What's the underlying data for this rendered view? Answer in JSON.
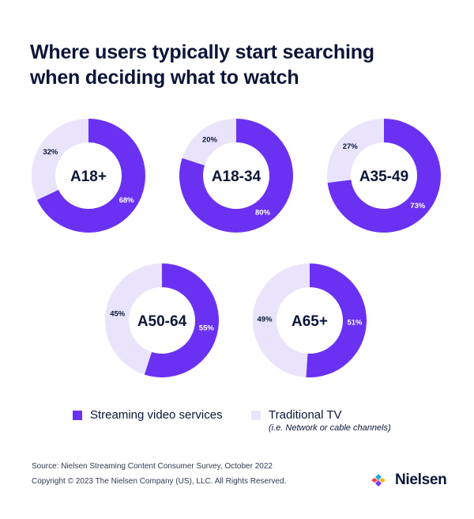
{
  "title_lines": [
    "Where users typically start searching",
    "when deciding what to watch"
  ],
  "colors": {
    "streaming": "#6b31f2",
    "traditional": "#e9e4fb",
    "text": "#0c1538",
    "hole": "#ffffff"
  },
  "chart_data": {
    "type": "pie",
    "variant": "donut",
    "title": "Where users typically start searching when deciding what to watch",
    "series": [
      {
        "name": "Streaming video services"
      },
      {
        "name": "Traditional TV"
      }
    ],
    "groups": [
      {
        "label": "A18+",
        "streaming": 68,
        "traditional": 32,
        "streaming_label": "68%",
        "traditional_label": "32%"
      },
      {
        "label": "A18-34",
        "streaming": 80,
        "traditional": 20,
        "streaming_label": "80%",
        "traditional_label": "20%"
      },
      {
        "label": "A35-49",
        "streaming": 73,
        "traditional": 27,
        "streaming_label": "73%",
        "traditional_label": "27%"
      },
      {
        "label": "A50-64",
        "streaming": 55,
        "traditional": 45,
        "streaming_label": "55%",
        "traditional_label": "45%"
      },
      {
        "label": "A65+",
        "streaming": 51,
        "traditional": 49,
        "streaming_label": "51%",
        "traditional_label": "49%"
      }
    ],
    "legend": {
      "placement": "bottom-center",
      "items": [
        {
          "label": "Streaming video services",
          "note": ""
        },
        {
          "label": "Traditional TV",
          "note": "(i.e. Network or cable channels)"
        }
      ]
    }
  },
  "footer": {
    "source": "Source: Nielsen Streaming Content Consumer Survey, October 2022",
    "copyright": "Copyright © 2023 The Nielsen Company (US), LLC. All Rights Reserved."
  },
  "logo": {
    "text": "Nielsen",
    "icon": "nielsen-logo-icon"
  }
}
